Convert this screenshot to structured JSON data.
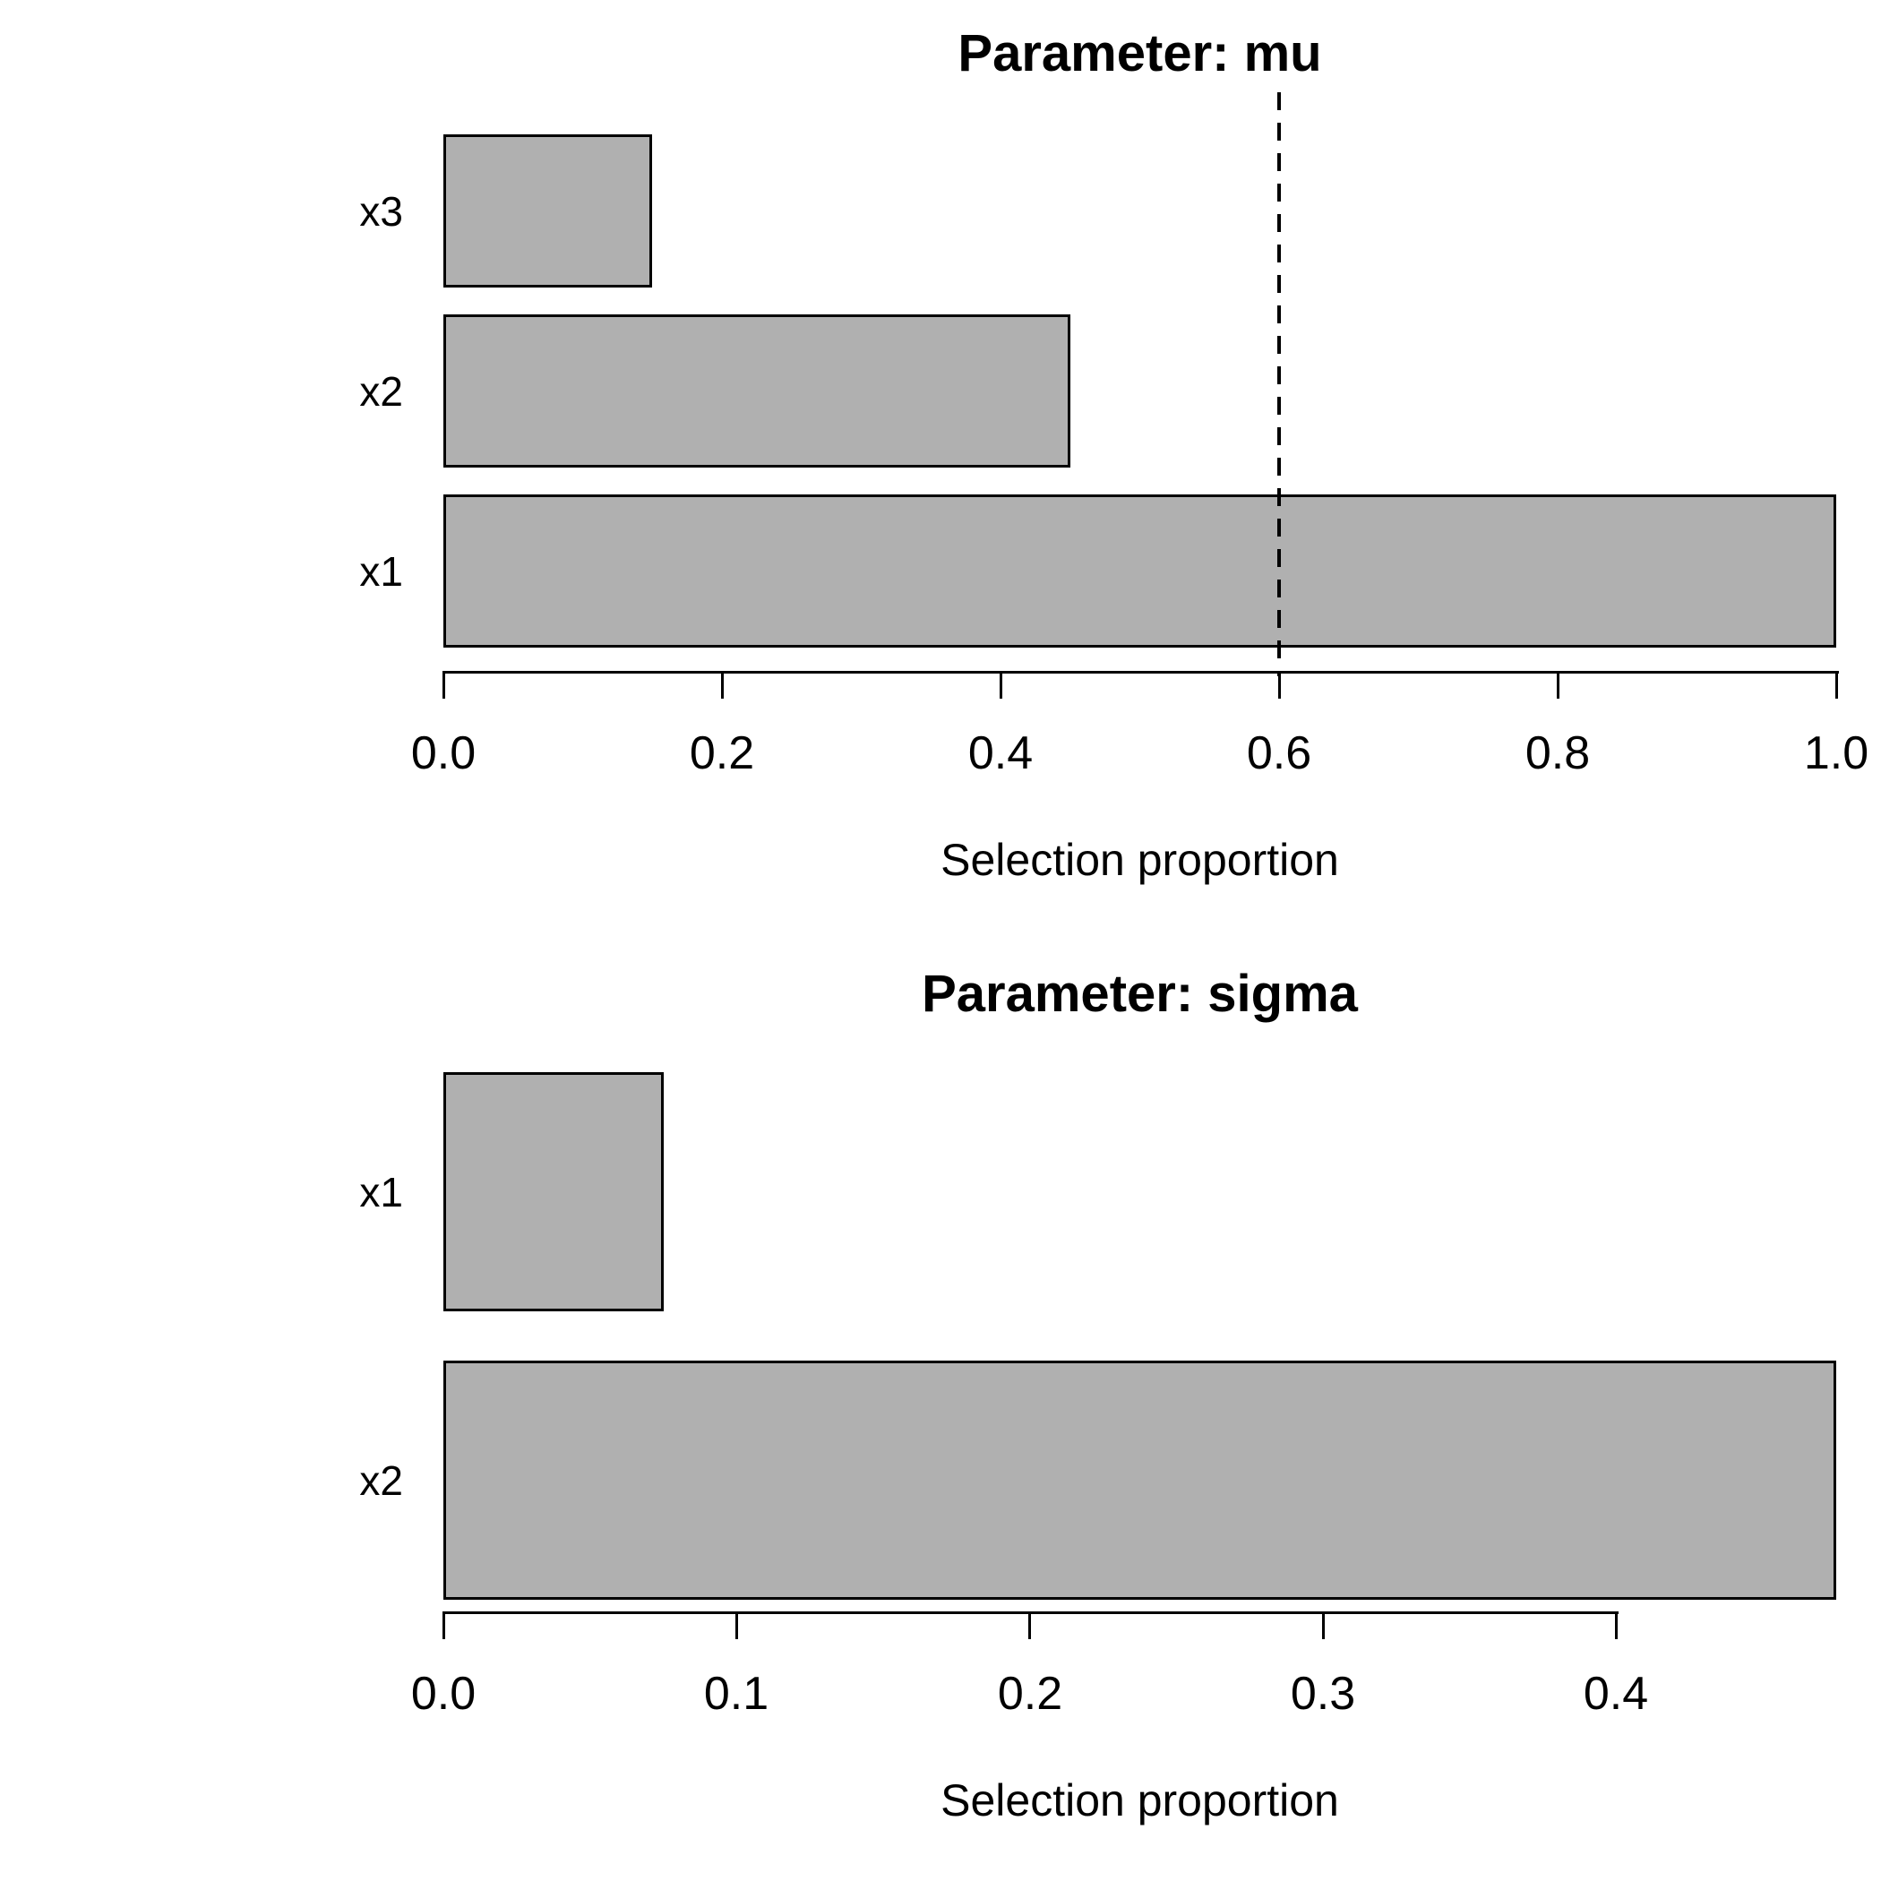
{
  "chart_data": [
    {
      "type": "bar",
      "orientation": "horizontal",
      "title": "Parameter: mu",
      "xlabel": "Selection proportion",
      "categories": [
        "x3",
        "x2",
        "x1"
      ],
      "values": [
        0.15,
        0.45,
        1.0
      ],
      "xlim": [
        0,
        1.0
      ],
      "x_ticks": [
        0.0,
        0.2,
        0.4,
        0.6,
        0.8,
        1.0
      ],
      "x_tick_labels": [
        "0.0",
        "0.2",
        "0.4",
        "0.6",
        "0.8",
        "1.0"
      ],
      "threshold_line": {
        "value": 0.6,
        "style": "dashed",
        "color": "#000000"
      },
      "bar_color": "#b0b0b0",
      "bar_border_color": "#000000",
      "grid": false,
      "legend": null
    },
    {
      "type": "bar",
      "orientation": "horizontal",
      "title": "Parameter: sigma",
      "xlabel": "Selection proportion",
      "categories": [
        "x1",
        "x2"
      ],
      "values": [
        0.075,
        0.475
      ],
      "xlim": [
        0,
        0.475
      ],
      "x_ticks": [
        0.0,
        0.1,
        0.2,
        0.3,
        0.4
      ],
      "x_tick_labels": [
        "0.0",
        "0.1",
        "0.2",
        "0.3",
        "0.4"
      ],
      "threshold_line": null,
      "bar_color": "#b0b0b0",
      "bar_border_color": "#000000",
      "grid": false,
      "legend": null
    }
  ]
}
